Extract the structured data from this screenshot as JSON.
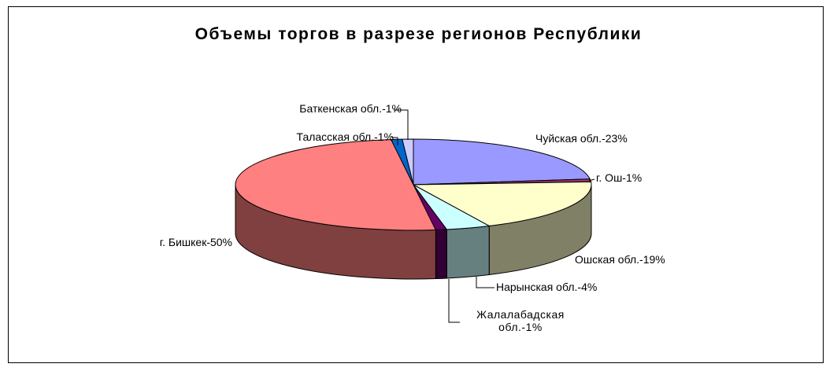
{
  "chart_data": {
    "type": "pie3d",
    "title": "Объемы торгов в разрезе регионов Республики",
    "values": [
      23,
      1,
      19,
      4,
      1,
      50,
      1,
      1
    ],
    "value_labels": [
      "Чуйская обл.-23%",
      "г. Ош-1%",
      "Ошская обл.-19%",
      "Нарынская обл.-4%",
      "Жалалабадская обл.-1%",
      "г. Бишкек-50%",
      "Таласская обл.-1%",
      "Баткенская обл.-1%"
    ],
    "colors": [
      "#9999ff",
      "#993366",
      "#ffffcc",
      "#ccffff",
      "#660066",
      "#ff8080",
      "#0066cc",
      "#ccccff"
    ]
  }
}
